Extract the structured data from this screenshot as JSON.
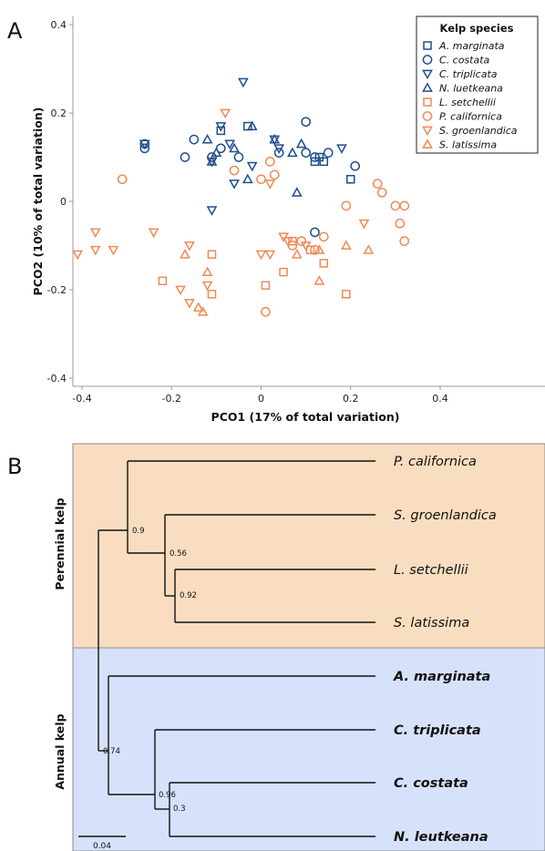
{
  "panels": {
    "a_letter": "A",
    "b_letter": "B"
  },
  "colors": {
    "annual": "#1f4e8c",
    "perennial": "#ef8a56",
    "perennial_bg": "#f9ddc0",
    "annual_bg": "#d6e2fb"
  },
  "chart_data": [
    {
      "type": "scatter",
      "title": "",
      "xlabel": "PCO1 (17% of total variation)",
      "ylabel": "PCO2 (10% of total variation)",
      "xlim": [
        -0.42,
        0.65
      ],
      "ylim": [
        -0.42,
        0.42
      ],
      "xticks": [
        -0.4,
        -0.2,
        0,
        0.2,
        0.4
      ],
      "yticks": [
        -0.4,
        -0.2,
        0,
        0.2,
        0.4
      ],
      "xtick_labels": [
        "-0.4",
        "-0.2",
        "0",
        "0.2",
        "0.4"
      ],
      "ytick_labels": [
        "-0.4",
        "-0.2",
        "0",
        "0.2",
        "0.4"
      ],
      "grid": false,
      "legend_title": "Kelp species",
      "legend_position": "top-right",
      "series": [
        {
          "name": "A. marginata",
          "marker": "square",
          "group": "annual",
          "points": [
            [
              -0.09,
              0.16
            ],
            [
              -0.03,
              0.17
            ],
            [
              0.12,
              0.09
            ],
            [
              0.14,
              0.09
            ],
            [
              0.2,
              0.05
            ],
            [
              0.13,
              0.1
            ]
          ]
        },
        {
          "name": "C. costata",
          "marker": "circle",
          "group": "annual",
          "points": [
            [
              -0.26,
              0.13
            ],
            [
              -0.26,
              0.12
            ],
            [
              -0.17,
              0.1
            ],
            [
              -0.15,
              0.14
            ],
            [
              -0.11,
              0.1
            ],
            [
              -0.09,
              0.12
            ],
            [
              -0.05,
              0.1
            ],
            [
              0.04,
              0.11
            ],
            [
              0.1,
              0.18
            ],
            [
              0.1,
              0.11
            ],
            [
              0.12,
              0.1
            ],
            [
              0.15,
              0.11
            ],
            [
              0.21,
              0.08
            ],
            [
              0.12,
              -0.07
            ]
          ]
        },
        {
          "name": "C. triplicata",
          "marker": "triangle-down",
          "group": "annual",
          "points": [
            [
              -0.26,
              0.13
            ],
            [
              -0.11,
              0.09
            ],
            [
              -0.09,
              0.17
            ],
            [
              -0.07,
              0.13
            ],
            [
              -0.06,
              0.04
            ],
            [
              -0.04,
              0.27
            ],
            [
              -0.02,
              0.08
            ],
            [
              0.03,
              0.14
            ],
            [
              0.04,
              0.12
            ],
            [
              0.18,
              0.12
            ],
            [
              -0.11,
              -0.02
            ]
          ]
        },
        {
          "name": "N. luetkeana",
          "marker": "triangle-up",
          "group": "annual",
          "points": [
            [
              -0.12,
              0.14
            ],
            [
              -0.1,
              0.11
            ],
            [
              -0.06,
              0.12
            ],
            [
              -0.02,
              0.17
            ],
            [
              -0.03,
              0.05
            ],
            [
              0.03,
              0.14
            ],
            [
              0.07,
              0.11
            ],
            [
              0.09,
              0.13
            ],
            [
              0.08,
              0.02
            ],
            [
              -0.11,
              0.09
            ]
          ]
        },
        {
          "name": "L. setchellii",
          "marker": "square",
          "group": "perennial",
          "points": [
            [
              -0.22,
              -0.18
            ],
            [
              -0.11,
              -0.12
            ],
            [
              -0.11,
              -0.21
            ],
            [
              0.01,
              -0.19
            ],
            [
              0.05,
              -0.16
            ],
            [
              0.07,
              -0.09
            ],
            [
              0.11,
              -0.11
            ],
            [
              0.14,
              -0.14
            ],
            [
              0.19,
              -0.21
            ]
          ]
        },
        {
          "name": "P. californica",
          "marker": "circle",
          "group": "perennial",
          "points": [
            [
              -0.31,
              0.05
            ],
            [
              -0.06,
              0.07
            ],
            [
              0.0,
              0.05
            ],
            [
              0.02,
              0.09
            ],
            [
              0.03,
              0.06
            ],
            [
              0.07,
              -0.1
            ],
            [
              0.09,
              -0.09
            ],
            [
              0.12,
              -0.11
            ],
            [
              0.14,
              -0.08
            ],
            [
              0.19,
              -0.01
            ],
            [
              0.26,
              0.04
            ],
            [
              0.27,
              0.02
            ],
            [
              0.3,
              -0.01
            ],
            [
              0.31,
              -0.05
            ],
            [
              0.32,
              -0.09
            ],
            [
              0.32,
              -0.01
            ],
            [
              0.01,
              -0.25
            ]
          ]
        },
        {
          "name": "S. groenlandica",
          "marker": "triangle-down",
          "group": "perennial",
          "points": [
            [
              -0.41,
              -0.12
            ],
            [
              -0.37,
              -0.07
            ],
            [
              -0.37,
              -0.11
            ],
            [
              -0.33,
              -0.11
            ],
            [
              -0.24,
              -0.07
            ],
            [
              -0.16,
              -0.1
            ],
            [
              -0.18,
              -0.2
            ],
            [
              -0.16,
              -0.23
            ],
            [
              -0.12,
              -0.19
            ],
            [
              -0.08,
              0.2
            ],
            [
              0.0,
              -0.12
            ],
            [
              0.02,
              -0.12
            ],
            [
              0.05,
              -0.08
            ],
            [
              0.06,
              -0.09
            ],
            [
              0.1,
              -0.1
            ],
            [
              0.23,
              -0.05
            ],
            [
              0.02,
              0.04
            ]
          ]
        },
        {
          "name": "S. latissima",
          "marker": "triangle-up",
          "group": "perennial",
          "points": [
            [
              -0.17,
              -0.12
            ],
            [
              -0.14,
              -0.24
            ],
            [
              -0.13,
              -0.25
            ],
            [
              -0.12,
              -0.16
            ],
            [
              0.08,
              -0.12
            ],
            [
              0.13,
              -0.11
            ],
            [
              0.13,
              -0.18
            ],
            [
              0.19,
              -0.1
            ],
            [
              0.24,
              -0.11
            ]
          ]
        }
      ]
    },
    {
      "type": "dendrogram",
      "scale_bar": "0.04",
      "groups": [
        {
          "label": "Perennial kelp",
          "color": "perennial_bg"
        },
        {
          "label": "Annual kelp",
          "color": "annual_bg"
        }
      ],
      "node_support": [
        "0.9",
        "0.56",
        "0.92",
        "0.74",
        "0.96",
        "0.3"
      ],
      "leaves": [
        {
          "name": "P. californica",
          "group": "perennial"
        },
        {
          "name": "S. groenlandica",
          "group": "perennial"
        },
        {
          "name": "L. setchellii",
          "group": "perennial"
        },
        {
          "name": "S. latissima",
          "group": "perennial"
        },
        {
          "name": "A. marginata",
          "group": "annual"
        },
        {
          "name": "C. triplicata",
          "group": "annual"
        },
        {
          "name": "C. costata",
          "group": "annual"
        },
        {
          "name": "N. leutkeana",
          "group": "annual"
        }
      ]
    }
  ]
}
